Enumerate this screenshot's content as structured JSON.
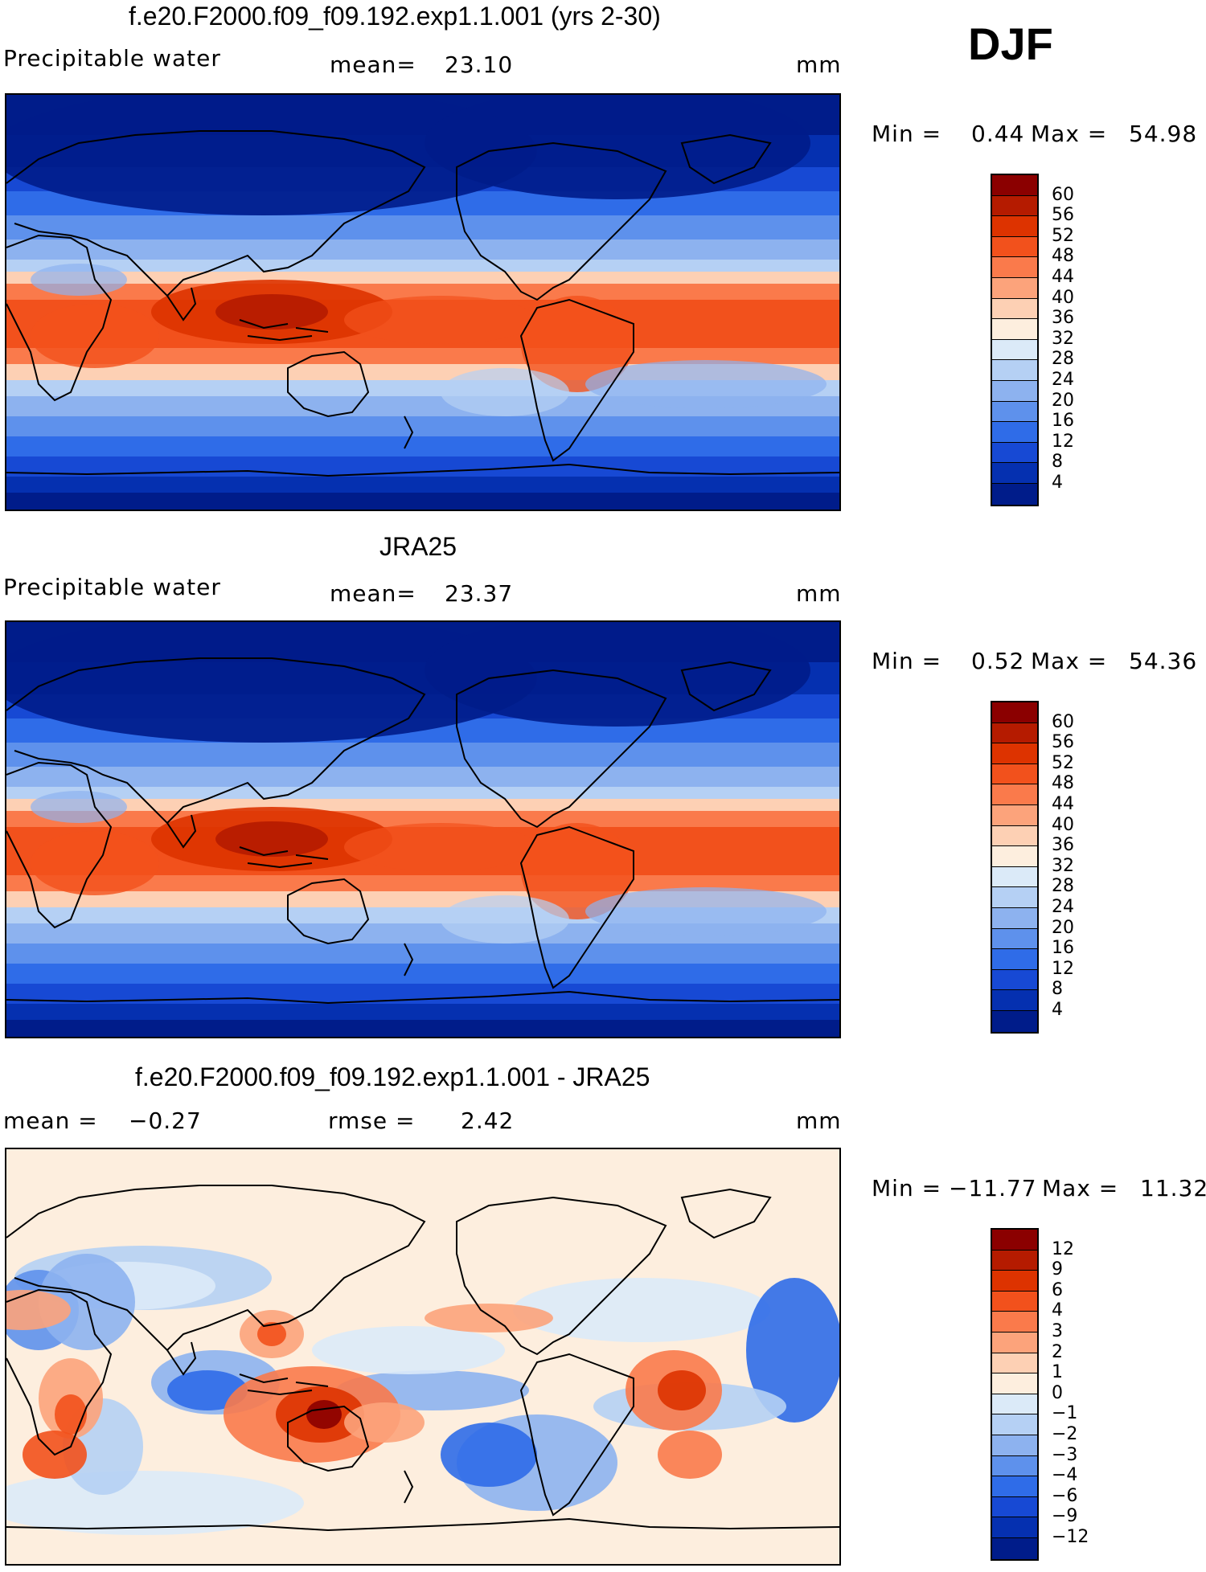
{
  "season": "DJF",
  "panels": [
    {
      "title": "f.e20.F2000.f09_f09.192.exp1.1.001 (yrs 2-30)",
      "left_label": "Precipitable water",
      "center_label": "mean=",
      "center_value": "23.10",
      "units": "mm",
      "stats": {
        "min_label": "Min =",
        "min": "0.44",
        "max_label": "Max =",
        "max": "54.98"
      },
      "colorbar": {
        "ticks": [
          "60",
          "56",
          "52",
          "48",
          "44",
          "40",
          "36",
          "32",
          "28",
          "24",
          "20",
          "16",
          "12",
          "8",
          "4"
        ],
        "colors": [
          "#8b0000",
          "#b51b00",
          "#dd3300",
          "#f2511c",
          "#fa7a4b",
          "#fca37b",
          "#fdd0b4",
          "#fdeede",
          "#dbeaf8",
          "#b5d0f4",
          "#8db2ef",
          "#5e91ec",
          "#2f6ce8",
          "#1749d4",
          "#0530b0",
          "#001c8a"
        ]
      },
      "map_kind": "mean"
    },
    {
      "title": "JRA25",
      "left_label": "Precipitable water",
      "center_label": "mean=",
      "center_value": "23.37",
      "units": "mm",
      "stats": {
        "min_label": "Min =",
        "min": "0.52",
        "max_label": "Max =",
        "max": "54.36"
      },
      "colorbar": {
        "ticks": [
          "60",
          "56",
          "52",
          "48",
          "44",
          "40",
          "36",
          "32",
          "28",
          "24",
          "20",
          "16",
          "12",
          "8",
          "4"
        ],
        "colors": [
          "#8b0000",
          "#b51b00",
          "#dd3300",
          "#f2511c",
          "#fa7a4b",
          "#fca37b",
          "#fdd0b4",
          "#fdeede",
          "#dbeaf8",
          "#b5d0f4",
          "#8db2ef",
          "#5e91ec",
          "#2f6ce8",
          "#1749d4",
          "#0530b0",
          "#001c8a"
        ]
      },
      "map_kind": "mean"
    },
    {
      "title": "f.e20.F2000.f09_f09.192.exp1.1.001 - JRA25",
      "left_label": "mean =",
      "left_value": "−0.27",
      "center_label": "rmse =",
      "center_value": "2.42",
      "units": "mm",
      "stats": {
        "min_label": "Min =",
        "min": "−11.77",
        "max_label": "Max =",
        "max": "11.32"
      },
      "colorbar": {
        "ticks": [
          "12",
          "9",
          "6",
          "4",
          "3",
          "2",
          "1",
          "0",
          "−1",
          "−2",
          "−3",
          "−4",
          "−6",
          "−9",
          "−12"
        ],
        "colors": [
          "#8b0000",
          "#b51b00",
          "#dd3300",
          "#f2511c",
          "#fa7a4b",
          "#fca37b",
          "#fdd0b4",
          "#fdeede",
          "#dbeaf8",
          "#b5d0f4",
          "#8db2ef",
          "#5e91ec",
          "#2f6ce8",
          "#1749d4",
          "#0530b0",
          "#001c8a"
        ]
      },
      "map_kind": "diff"
    }
  ]
}
